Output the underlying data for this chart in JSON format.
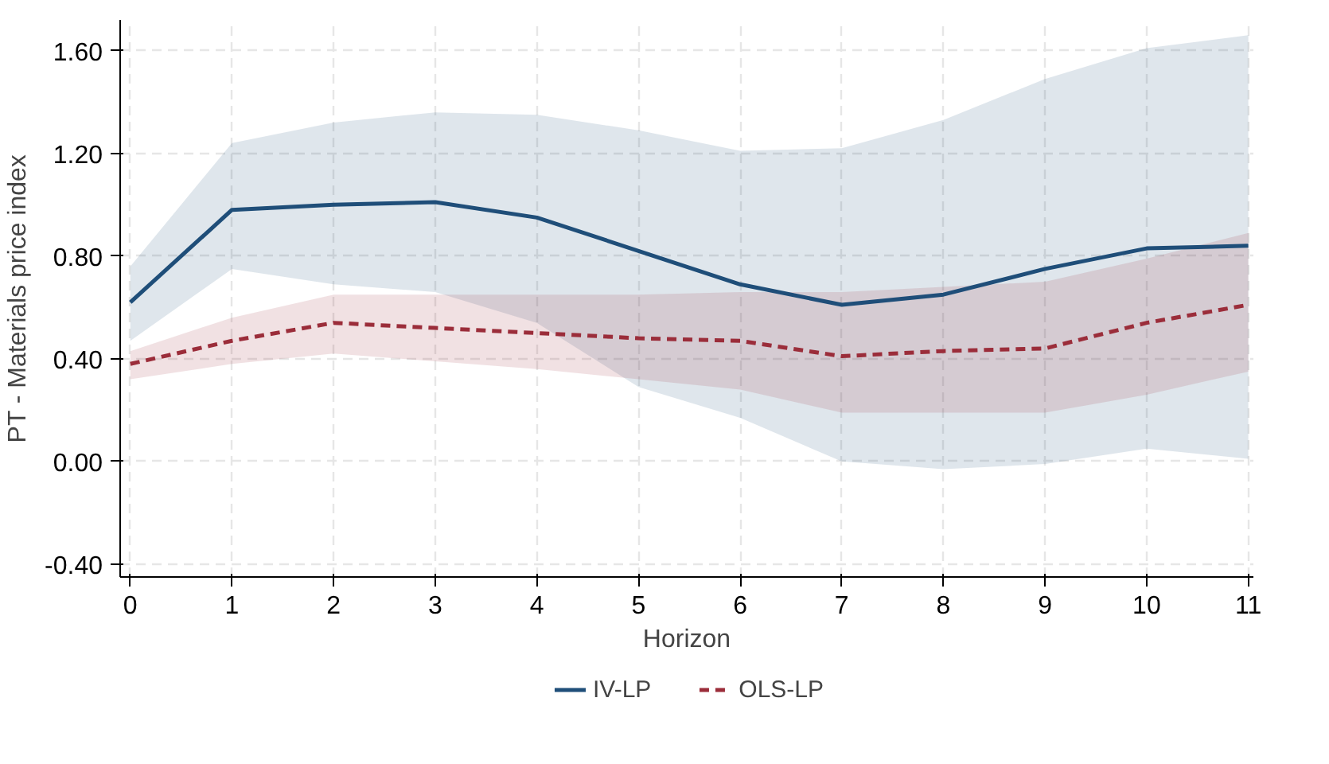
{
  "chart_data": {
    "type": "line",
    "xlabel": "Horizon",
    "ylabel": "PT - Materials price index",
    "x": [
      0,
      1,
      2,
      3,
      4,
      5,
      6,
      7,
      8,
      9,
      10,
      11
    ],
    "xlim": [
      -0.1,
      11.05
    ],
    "xticks": [
      0,
      1,
      2,
      3,
      4,
      5,
      6,
      7,
      8,
      9,
      10,
      11
    ],
    "ylim": [
      -0.45,
      1.72
    ],
    "yticks": [
      {
        "value": -0.4,
        "label": "-0.40"
      },
      {
        "value": 0,
        "label": "0.00"
      },
      {
        "value": 0.4,
        "label": "0.40"
      },
      {
        "value": 0.8,
        "label": "0.80"
      },
      {
        "value": 1.2,
        "label": "1.20"
      },
      {
        "value": 1.6,
        "label": "1.60"
      }
    ],
    "grid": true,
    "legend": "bottom",
    "series": [
      {
        "name": "IV-LP",
        "color": "#1f4e79",
        "line_style": "solid",
        "values": [
          0.62,
          0.98,
          1.0,
          1.01,
          0.95,
          0.82,
          0.69,
          0.61,
          0.65,
          0.75,
          0.83,
          0.84
        ],
        "lower": [
          0.47,
          0.75,
          0.69,
          0.66,
          0.54,
          0.29,
          0.17,
          0.0,
          -0.03,
          -0.01,
          0.05,
          0.01
        ],
        "upper": [
          0.76,
          1.24,
          1.32,
          1.36,
          1.35,
          1.29,
          1.21,
          1.22,
          1.33,
          1.49,
          1.61,
          1.66
        ]
      },
      {
        "name": "OLS-LP",
        "color": "#9b2d3a",
        "line_style": "dashed",
        "values": [
          0.38,
          0.47,
          0.54,
          0.52,
          0.5,
          0.48,
          0.47,
          0.41,
          0.43,
          0.44,
          0.54,
          0.61
        ],
        "lower": [
          0.32,
          0.38,
          0.42,
          0.39,
          0.36,
          0.32,
          0.28,
          0.19,
          0.19,
          0.19,
          0.26,
          0.35
        ],
        "upper": [
          0.43,
          0.56,
          0.65,
          0.65,
          0.65,
          0.65,
          0.66,
          0.66,
          0.68,
          0.7,
          0.79,
          0.89
        ]
      }
    ]
  }
}
